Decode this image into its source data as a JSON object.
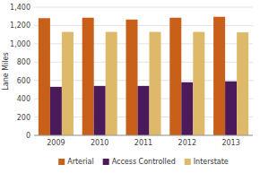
{
  "chart_data": {
    "type": "bar",
    "ylabel": "Lane Miles",
    "categories": [
      "2009",
      "2010",
      "2011",
      "2012",
      "2013"
    ],
    "series": [
      {
        "name": "Arterial",
        "color": "#C8601A",
        "values": [
          1280,
          1285,
          1265,
          1285,
          1295
        ]
      },
      {
        "name": "Access Controlled",
        "color": "#4B1A5A",
        "values": [
          530,
          540,
          540,
          580,
          590
        ]
      },
      {
        "name": "Interstate",
        "color": "#DEB96A",
        "values": [
          1130,
          1130,
          1130,
          1130,
          1125
        ]
      }
    ],
    "ylim": [
      0,
      1400
    ],
    "yticks": [
      0,
      200,
      400,
      600,
      800,
      {
        "value": 1000,
        "label": "1,000"
      },
      {
        "value": 1200,
        "label": "1,200"
      },
      {
        "value": 1400,
        "label": "1,400"
      }
    ],
    "grid": true,
    "legend": "bottom"
  }
}
